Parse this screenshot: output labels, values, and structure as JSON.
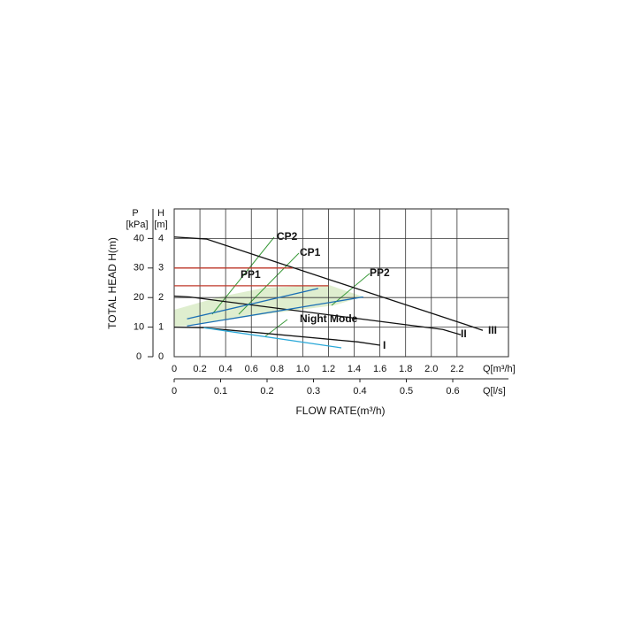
{
  "chart_data": {
    "type": "line",
    "y_label": "TOTAL HEAD H(m)",
    "x_label": "FLOW RATE(m³/h)",
    "y_axis_title": "H",
    "y_axis_unit": "[m]",
    "y2_axis_title": "P",
    "y2_axis_unit": "[kPa]",
    "x_axis_unit": "Q[m³/h]",
    "x2_axis_unit": "Q[l/s]",
    "xlim": [
      0,
      2.6
    ],
    "xticks": [
      0,
      0.2,
      0.4,
      0.6,
      0.8,
      {
        "value": 1.0,
        "label": "1.0"
      },
      1.2,
      1.4,
      1.6,
      1.8,
      {
        "value": 2.0,
        "label": "2.0"
      },
      2.2
    ],
    "ylim": [
      0,
      5
    ],
    "yticks": [
      0,
      1,
      2,
      3,
      4
    ],
    "y2lim": [
      0,
      50
    ],
    "y2ticks": [
      0,
      10,
      20,
      30,
      40
    ],
    "x2lim": [
      0,
      0.72
    ],
    "x2ticks": [
      0,
      0.1,
      0.2,
      0.3,
      0.4,
      0.5,
      0.6
    ],
    "grid": true,
    "series": [
      {
        "name": "III",
        "color": "#111111",
        "x": [
          0,
          0.25,
          2.28,
          2.4
        ],
        "values": [
          4.05,
          3.98,
          1.07,
          0.89
        ]
      },
      {
        "name": "II",
        "color": "#111111",
        "x": [
          0,
          0.12,
          2.09,
          2.23
        ],
        "values": [
          2.05,
          2.02,
          0.92,
          0.74
        ]
      },
      {
        "name": "I",
        "color": "#111111",
        "x": [
          0,
          0.23,
          1.43,
          1.6
        ],
        "values": [
          1.0,
          0.98,
          0.5,
          0.39
        ]
      },
      {
        "name": "CP2",
        "color": "#c0392b",
        "x": [
          0,
          0.92
        ],
        "values": [
          3,
          3
        ]
      },
      {
        "name": "CP1",
        "color": "#c0392b",
        "x": [
          0,
          1.2
        ],
        "values": [
          2.4,
          2.4
        ]
      },
      {
        "name": "PP2",
        "color": "#1a6fb5",
        "x": [
          0.1,
          1.12
        ],
        "values": [
          1.28,
          2.31
        ]
      },
      {
        "name": "PP1",
        "color": "#1a6fb5",
        "x": [
          0.1,
          1.47
        ],
        "values": [
          1.04,
          2.02
        ]
      },
      {
        "name": "Night Mode",
        "color": "#2aa8d8",
        "x": [
          0.23,
          1.3
        ],
        "values": [
          0.98,
          0.3
        ]
      }
    ]
  }
}
